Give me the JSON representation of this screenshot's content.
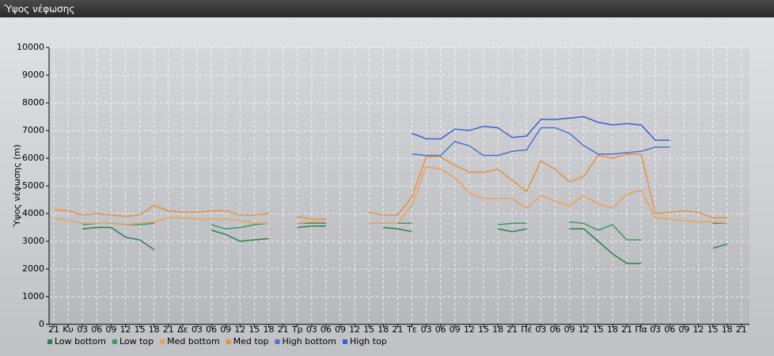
{
  "window_title": "Ύψος νέφωσης",
  "chart_data": {
    "type": "line",
    "y_label": "Ύψος νέφωσης (m)",
    "categories": [
      "21",
      "Κυ",
      "03",
      "06",
      "09",
      "12",
      "15",
      "18",
      "21",
      "Δε",
      "03",
      "06",
      "09",
      "12",
      "15",
      "18",
      "21",
      "Τρ",
      "03",
      "06",
      "09",
      "12",
      "15",
      "18",
      "21",
      "Τε",
      "03",
      "06",
      "09",
      "12",
      "15",
      "18",
      "21",
      "Πέ",
      "03",
      "06",
      "09",
      "12",
      "15",
      "18",
      "21",
      "Πα",
      "03",
      "06",
      "09",
      "12",
      "15",
      "18",
      "21"
    ],
    "ylim": [
      0,
      10000
    ],
    "yticks": [
      0,
      1000,
      2000,
      3000,
      4000,
      5000,
      6000,
      7000,
      8000,
      9000,
      10000
    ],
    "grid": true,
    "legend": "bottom",
    "series": [
      {
        "name": "Low bottom",
        "color": "#2a8050",
        "values": [
          null,
          null,
          3450,
          3500,
          3500,
          3150,
          3050,
          2700,
          null,
          null,
          null,
          3400,
          3250,
          3000,
          3050,
          3100,
          null,
          3500,
          3550,
          3550,
          null,
          null,
          null,
          3500,
          3450,
          3350,
          null,
          null,
          null,
          null,
          null,
          3450,
          3350,
          3450,
          null,
          null,
          3450,
          3450,
          3000,
          2550,
          2200,
          2200,
          null,
          null,
          null,
          null,
          2750,
          2900,
          null
        ]
      },
      {
        "name": "Low top",
        "color": "#3a9a68",
        "values": [
          null,
          null,
          3600,
          3650,
          3650,
          3600,
          3600,
          3650,
          null,
          null,
          null,
          3600,
          3450,
          3500,
          3600,
          3650,
          null,
          3650,
          3650,
          3650,
          null,
          null,
          null,
          3650,
          3650,
          3650,
          null,
          null,
          null,
          null,
          null,
          3600,
          3650,
          3650,
          null,
          null,
          3700,
          3650,
          3400,
          3600,
          3050,
          3050,
          null,
          null,
          null,
          null,
          3650,
          3650,
          null
        ]
      },
      {
        "name": "Med bottom",
        "color": "#f0a050",
        "values": [
          3850,
          3750,
          3650,
          3650,
          3650,
          3600,
          3650,
          3700,
          3850,
          3850,
          3800,
          3800,
          3800,
          3750,
          3650,
          3650,
          null,
          3650,
          3700,
          3700,
          null,
          null,
          3650,
          3650,
          3650,
          4300,
          5700,
          5600,
          5300,
          4750,
          4550,
          4550,
          4550,
          4200,
          4650,
          4450,
          4300,
          4650,
          4350,
          4200,
          4700,
          4850,
          3850,
          3800,
          3750,
          3700,
          3700,
          3650,
          null
        ]
      },
      {
        "name": "Med top",
        "color": "#e8903a",
        "values": [
          4150,
          4100,
          3950,
          4000,
          3950,
          3900,
          3950,
          4300,
          4100,
          4050,
          4050,
          4100,
          4100,
          3950,
          3950,
          4000,
          null,
          3900,
          3800,
          3800,
          null,
          null,
          4050,
          3950,
          3950,
          4600,
          6050,
          6050,
          5750,
          5500,
          5500,
          5600,
          5200,
          4800,
          5900,
          5600,
          5150,
          5350,
          6100,
          6000,
          6150,
          6150,
          4000,
          4050,
          4100,
          4050,
          3850,
          3850,
          null
        ]
      },
      {
        "name": "High bottom",
        "color": "#4a72d4",
        "values": [
          null,
          null,
          null,
          null,
          null,
          null,
          null,
          null,
          null,
          null,
          null,
          null,
          null,
          null,
          null,
          null,
          null,
          null,
          null,
          null,
          null,
          null,
          null,
          null,
          null,
          6150,
          6100,
          6100,
          6600,
          6450,
          6100,
          6100,
          6250,
          6300,
          7100,
          7100,
          6900,
          6450,
          6150,
          6150,
          6200,
          6250,
          6400,
          6400,
          null,
          null,
          null,
          null,
          null
        ]
      },
      {
        "name": "High top",
        "color": "#3a62cc",
        "values": [
          null,
          null,
          null,
          null,
          null,
          null,
          null,
          null,
          null,
          null,
          null,
          null,
          null,
          null,
          null,
          null,
          null,
          null,
          null,
          null,
          null,
          null,
          null,
          null,
          null,
          6900,
          6700,
          6700,
          7050,
          7000,
          7150,
          7100,
          6750,
          6800,
          7400,
          7400,
          7450,
          7500,
          7300,
          7200,
          7250,
          7200,
          6650,
          6650,
          null,
          null,
          null,
          null,
          null
        ]
      }
    ]
  }
}
